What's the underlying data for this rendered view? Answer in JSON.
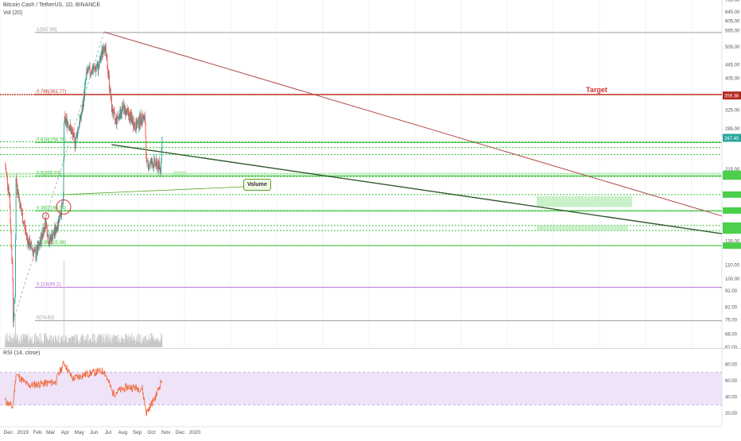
{
  "header": {
    "title": "Bitcoin Cash / TetherUS, 1D, BINANCE",
    "volume_label": "Vol (20)",
    "rsi_label": "RSI (14, close)"
  },
  "annotations": {
    "target_label": "Target",
    "volume_label": "Volume"
  },
  "price_axis": {
    "scale": "log",
    "ticks": [
      "700.00",
      "645.00",
      "605.00",
      "565.00",
      "505.00",
      "445.00",
      "405.00",
      "325.00",
      "285.00",
      "215.00",
      "160.00",
      "130.00",
      "110.00",
      "100.00",
      "92.00",
      "82.00",
      "75.00",
      "68.00",
      "62.00"
    ],
    "badges": [
      {
        "text": "359.38",
        "color": "#b3261e"
      },
      {
        "text": "267.45",
        "color": "#26a69a"
      }
    ]
  },
  "rsi_axis": {
    "ticks": [
      "80.00",
      "60.00",
      "40.00",
      "20.00"
    ],
    "band": [
      30,
      70
    ]
  },
  "time_axis": {
    "labels": [
      "Dec",
      "2019",
      "Feb",
      "Mar",
      "Apr",
      "May",
      "Jun",
      "Jul",
      "Aug",
      "Sep",
      "Oct",
      "Nov",
      "Dec",
      "2020"
    ]
  },
  "fib_levels": [
    {
      "label": "1(557.99)",
      "value": 557.99,
      "color": "#9e9e9e"
    },
    {
      "label": "0.786(361.77)",
      "value": 361.77,
      "color": "#c0392b"
    },
    {
      "label": "0.618(258.76)",
      "value": 258.76,
      "color": "#34c234"
    },
    {
      "label": "0.5(205.07)",
      "value": 205.07,
      "color": "#34c234"
    },
    {
      "label": "0.382(160.54)",
      "value": 160.54,
      "color": "#34c234"
    },
    {
      "label": "0.236(125.98)",
      "value": 125.98,
      "color": "#34c234"
    },
    {
      "label": "0.118(94.2)",
      "value": 94.2,
      "color": "#b36fd6"
    },
    {
      "label": "0(74.62)",
      "value": 74.62,
      "color": "#9e9e9e"
    }
  ],
  "colors": {
    "up": "#26a69a",
    "down": "#ef5350",
    "green_line": "#34c234",
    "target_line": "#c0392b",
    "resistance": "#b24a4a",
    "support": "#2e5a2e",
    "rsi_line": "#f06a3a",
    "rsi_band": "#e9d9f5",
    "volume": "#c6c6c6"
  },
  "chart_data": {
    "type": "candlestick",
    "title": "Bitcoin Cash / TetherUS, 1D, BINANCE",
    "y_scale": "log",
    "ylim": [
      62,
      700
    ],
    "key_points": [
      {
        "date": "2018-11-28",
        "close": 220
      },
      {
        "date": "2018-12-07",
        "close": 180
      },
      {
        "date": "2018-12-14",
        "close": 100
      },
      {
        "date": "2018-12-15",
        "close": 75
      },
      {
        "date": "2018-12-19",
        "close": 90
      },
      {
        "date": "2018-12-21",
        "close": 200
      },
      {
        "date": "2019-01-01",
        "close": 160
      },
      {
        "date": "2019-01-15",
        "close": 130
      },
      {
        "date": "2019-02-01",
        "close": 118
      },
      {
        "date": "2019-02-08",
        "close": 125
      },
      {
        "date": "2019-02-22",
        "close": 150
      },
      {
        "date": "2019-03-01",
        "close": 130
      },
      {
        "date": "2019-03-15",
        "close": 140
      },
      {
        "date": "2019-03-31",
        "close": 170
      },
      {
        "date": "2019-04-02",
        "close": 300
      },
      {
        "date": "2019-04-10",
        "close": 300
      },
      {
        "date": "2019-04-25",
        "close": 260
      },
      {
        "date": "2019-05-10",
        "close": 320
      },
      {
        "date": "2019-05-20",
        "close": 420
      },
      {
        "date": "2019-06-01",
        "close": 430
      },
      {
        "date": "2019-06-15",
        "close": 440
      },
      {
        "date": "2019-06-26",
        "close": 520
      },
      {
        "date": "2019-07-05",
        "close": 420
      },
      {
        "date": "2019-07-12",
        "close": 330
      },
      {
        "date": "2019-07-20",
        "close": 300
      },
      {
        "date": "2019-08-05",
        "close": 330
      },
      {
        "date": "2019-08-20",
        "close": 310
      },
      {
        "date": "2019-09-01",
        "close": 290
      },
      {
        "date": "2019-09-15",
        "close": 310
      },
      {
        "date": "2019-09-21",
        "close": 300
      },
      {
        "date": "2019-09-24",
        "close": 220
      },
      {
        "date": "2019-10-05",
        "close": 225
      },
      {
        "date": "2019-10-20",
        "close": 220
      },
      {
        "date": "2019-10-24",
        "close": 215
      },
      {
        "date": "2019-10-27",
        "close": 267.45
      }
    ],
    "volume_spikes": [
      {
        "date": "2018-12-20",
        "volume": "high"
      },
      {
        "date": "2019-04-02",
        "volume": "very high"
      }
    ],
    "rsi_points": [
      {
        "date": "2018-11-28",
        "rsi": 35
      },
      {
        "date": "2018-12-14",
        "rsi": 27
      },
      {
        "date": "2018-12-21",
        "rsi": 68
      },
      {
        "date": "2019-01-15",
        "rsi": 54
      },
      {
        "date": "2019-02-15",
        "rsi": 56
      },
      {
        "date": "2019-03-15",
        "rsi": 58
      },
      {
        "date": "2019-04-02",
        "rsi": 82
      },
      {
        "date": "2019-04-20",
        "rsi": 62
      },
      {
        "date": "2019-05-20",
        "rsi": 68
      },
      {
        "date": "2019-06-26",
        "rsi": 72
      },
      {
        "date": "2019-07-15",
        "rsi": 44
      },
      {
        "date": "2019-08-15",
        "rsi": 52
      },
      {
        "date": "2019-09-15",
        "rsi": 50
      },
      {
        "date": "2019-09-24",
        "rsi": 20
      },
      {
        "date": "2019-10-15",
        "rsi": 42
      },
      {
        "date": "2019-10-27",
        "rsi": 62
      }
    ]
  }
}
